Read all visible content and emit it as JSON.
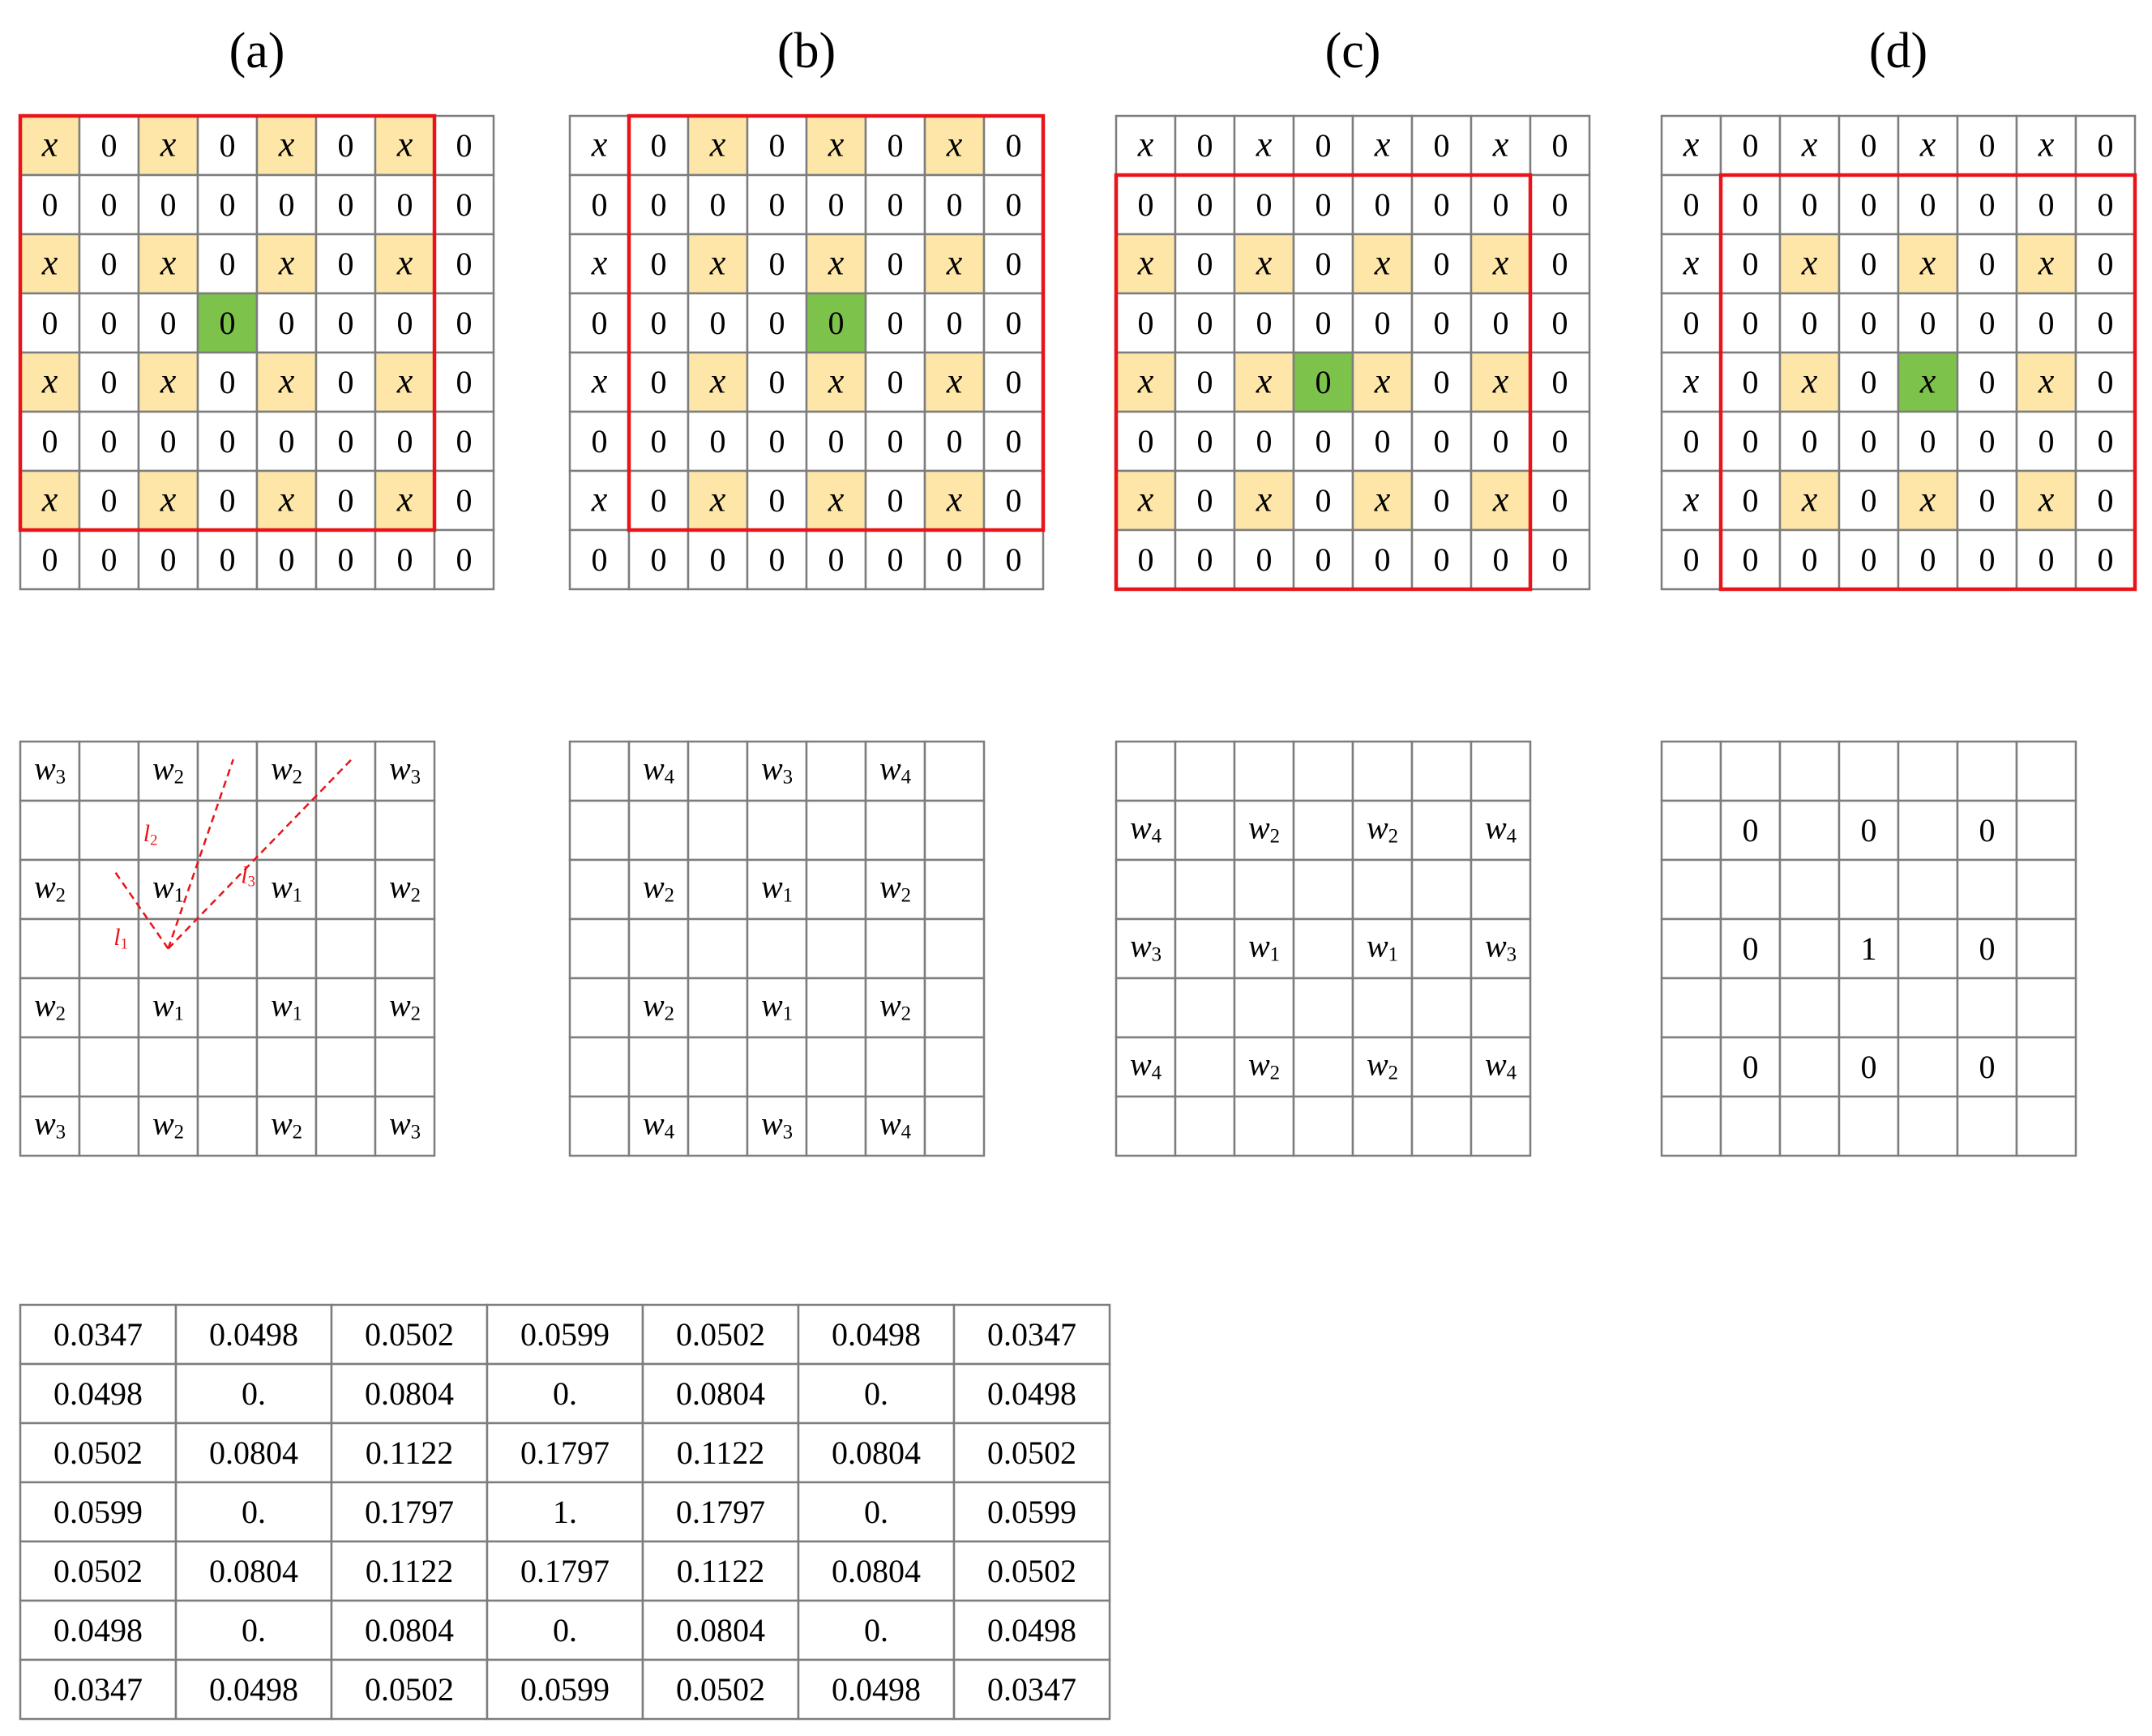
{
  "panels": [
    {
      "label": "(a)",
      "rows": [
        [
          "x",
          "0",
          "x",
          "0",
          "x",
          "0",
          "x",
          "0"
        ],
        [
          "0",
          "0",
          "0",
          "0",
          "0",
          "0",
          "0",
          "0"
        ],
        [
          "x",
          "0",
          "x",
          "0",
          "x",
          "0",
          "x",
          "0"
        ],
        [
          "0",
          "0",
          "0",
          "0",
          "0",
          "0",
          "0",
          "0"
        ],
        [
          "x",
          "0",
          "x",
          "0",
          "x",
          "0",
          "x",
          "0"
        ],
        [
          "0",
          "0",
          "0",
          "0",
          "0",
          "0",
          "0",
          "0"
        ],
        [
          "x",
          "0",
          "x",
          "0",
          "x",
          "0",
          "x",
          "0"
        ],
        [
          "0",
          "0",
          "0",
          "0",
          "0",
          "0",
          "0",
          "0"
        ]
      ],
      "highlight_cells": [
        [
          0,
          0
        ],
        [
          0,
          2
        ],
        [
          0,
          4
        ],
        [
          0,
          6
        ],
        [
          2,
          0
        ],
        [
          2,
          2
        ],
        [
          2,
          4
        ],
        [
          2,
          6
        ],
        [
          4,
          0
        ],
        [
          4,
          2
        ],
        [
          4,
          4
        ],
        [
          4,
          6
        ],
        [
          6,
          0
        ],
        [
          6,
          2
        ],
        [
          6,
          4
        ],
        [
          6,
          6
        ]
      ],
      "center_cell": [
        3,
        3
      ],
      "window": {
        "row": 0,
        "col": 0,
        "size": 7
      },
      "weights_grid": [
        [
          "w3",
          "",
          "w2",
          "",
          "w2",
          "",
          "w3"
        ],
        [
          "",
          "",
          "",
          "",
          "",
          "",
          ""
        ],
        [
          "w2",
          "",
          "w1",
          "",
          "w1",
          "",
          "w2"
        ],
        [
          "",
          "",
          "",
          "",
          "",
          "",
          ""
        ],
        [
          "w2",
          "",
          "w1",
          "",
          "w1",
          "",
          "w2"
        ],
        [
          "",
          "",
          "",
          "",
          "",
          "",
          ""
        ],
        [
          "w3",
          "",
          "w2",
          "",
          "w2",
          "",
          "w3"
        ]
      ],
      "distance_labels": [
        "l1",
        "l2",
        "l3"
      ]
    },
    {
      "label": "(b)",
      "rows": [
        [
          "x",
          "0",
          "x",
          "0",
          "x",
          "0",
          "x",
          "0"
        ],
        [
          "0",
          "0",
          "0",
          "0",
          "0",
          "0",
          "0",
          "0"
        ],
        [
          "x",
          "0",
          "x",
          "0",
          "x",
          "0",
          "x",
          "0"
        ],
        [
          "0",
          "0",
          "0",
          "0",
          "0",
          "0",
          "0",
          "0"
        ],
        [
          "x",
          "0",
          "x",
          "0",
          "x",
          "0",
          "x",
          "0"
        ],
        [
          "0",
          "0",
          "0",
          "0",
          "0",
          "0",
          "0",
          "0"
        ],
        [
          "x",
          "0",
          "x",
          "0",
          "x",
          "0",
          "x",
          "0"
        ],
        [
          "0",
          "0",
          "0",
          "0",
          "0",
          "0",
          "0",
          "0"
        ]
      ],
      "highlight_cells": [
        [
          0,
          2
        ],
        [
          0,
          4
        ],
        [
          0,
          6
        ],
        [
          2,
          2
        ],
        [
          2,
          4
        ],
        [
          2,
          6
        ],
        [
          4,
          2
        ],
        [
          4,
          4
        ],
        [
          4,
          6
        ],
        [
          6,
          2
        ],
        [
          6,
          4
        ],
        [
          6,
          6
        ]
      ],
      "center_cell": [
        3,
        4
      ],
      "window": {
        "row": 0,
        "col": 1,
        "size": 7
      },
      "weights_grid": [
        [
          "",
          "w4",
          "",
          "w3",
          "",
          "w4",
          ""
        ],
        [
          "",
          "",
          "",
          "",
          "",
          "",
          ""
        ],
        [
          "",
          "w2",
          "",
          "w1",
          "",
          "w2",
          ""
        ],
        [
          "",
          "",
          "",
          "",
          "",
          "",
          ""
        ],
        [
          "",
          "w2",
          "",
          "w1",
          "",
          "w2",
          ""
        ],
        [
          "",
          "",
          "",
          "",
          "",
          "",
          ""
        ],
        [
          "",
          "w4",
          "",
          "w3",
          "",
          "w4",
          ""
        ]
      ]
    },
    {
      "label": "(c)",
      "rows": [
        [
          "x",
          "0",
          "x",
          "0",
          "x",
          "0",
          "x",
          "0"
        ],
        [
          "0",
          "0",
          "0",
          "0",
          "0",
          "0",
          "0",
          "0"
        ],
        [
          "x",
          "0",
          "x",
          "0",
          "x",
          "0",
          "x",
          "0"
        ],
        [
          "0",
          "0",
          "0",
          "0",
          "0",
          "0",
          "0",
          "0"
        ],
        [
          "x",
          "0",
          "x",
          "0",
          "x",
          "0",
          "x",
          "0"
        ],
        [
          "0",
          "0",
          "0",
          "0",
          "0",
          "0",
          "0",
          "0"
        ],
        [
          "x",
          "0",
          "x",
          "0",
          "x",
          "0",
          "x",
          "0"
        ],
        [
          "0",
          "0",
          "0",
          "0",
          "0",
          "0",
          "0",
          "0"
        ]
      ],
      "highlight_cells": [
        [
          2,
          0
        ],
        [
          2,
          2
        ],
        [
          2,
          4
        ],
        [
          2,
          6
        ],
        [
          4,
          0
        ],
        [
          4,
          2
        ],
        [
          4,
          4
        ],
        [
          4,
          6
        ],
        [
          6,
          0
        ],
        [
          6,
          2
        ],
        [
          6,
          4
        ],
        [
          6,
          6
        ]
      ],
      "center_cell": [
        4,
        3
      ],
      "window": {
        "row": 1,
        "col": 0,
        "size": 7
      },
      "weights_grid": [
        [
          "",
          "",
          "",
          "",
          "",
          "",
          ""
        ],
        [
          "w4",
          "",
          "w2",
          "",
          "w2",
          "",
          "w4"
        ],
        [
          "",
          "",
          "",
          "",
          "",
          "",
          ""
        ],
        [
          "w3",
          "",
          "w1",
          "",
          "w1",
          "",
          "w3"
        ],
        [
          "",
          "",
          "",
          "",
          "",
          "",
          ""
        ],
        [
          "w4",
          "",
          "w2",
          "",
          "w2",
          "",
          "w4"
        ],
        [
          "",
          "",
          "",
          "",
          "",
          "",
          ""
        ]
      ]
    },
    {
      "label": "(d)",
      "rows": [
        [
          "x",
          "0",
          "x",
          "0",
          "x",
          "0",
          "x",
          "0"
        ],
        [
          "0",
          "0",
          "0",
          "0",
          "0",
          "0",
          "0",
          "0"
        ],
        [
          "x",
          "0",
          "x",
          "0",
          "x",
          "0",
          "x",
          "0"
        ],
        [
          "0",
          "0",
          "0",
          "0",
          "0",
          "0",
          "0",
          "0"
        ],
        [
          "x",
          "0",
          "x",
          "0",
          "x",
          "0",
          "x",
          "0"
        ],
        [
          "0",
          "0",
          "0",
          "0",
          "0",
          "0",
          "0",
          "0"
        ],
        [
          "x",
          "0",
          "x",
          "0",
          "x",
          "0",
          "x",
          "0"
        ],
        [
          "0",
          "0",
          "0",
          "0",
          "0",
          "0",
          "0",
          "0"
        ]
      ],
      "highlight_cells": [
        [
          2,
          2
        ],
        [
          2,
          4
        ],
        [
          2,
          6
        ],
        [
          4,
          2
        ],
        [
          4,
          4
        ],
        [
          4,
          6
        ],
        [
          6,
          2
        ],
        [
          6,
          4
        ],
        [
          6,
          6
        ]
      ],
      "center_cell": [
        4,
        4
      ],
      "window": {
        "row": 1,
        "col": 1,
        "size": 7
      },
      "weights_grid": [
        [
          "",
          "",
          "",
          "",
          "",
          "",
          ""
        ],
        [
          "",
          "0",
          "",
          "0",
          "",
          "0",
          ""
        ],
        [
          "",
          "",
          "",
          "",
          "",
          "",
          ""
        ],
        [
          "",
          "0",
          "",
          "1",
          "",
          "0",
          ""
        ],
        [
          "",
          "",
          "",
          "",
          "",
          "",
          ""
        ],
        [
          "",
          "0",
          "",
          "0",
          "",
          "0",
          ""
        ],
        [
          "",
          "",
          "",
          "",
          "",
          "",
          ""
        ]
      ]
    }
  ],
  "kernel_table": [
    [
      "0.0347",
      "0.0498",
      "0.0502",
      "0.0599",
      "0.0502",
      "0.0498",
      "0.0347"
    ],
    [
      "0.0498",
      "0.",
      "0.0804",
      "0.",
      "0.0804",
      "0.",
      "0.0498"
    ],
    [
      "0.0502",
      "0.0804",
      "0.1122",
      "0.1797",
      "0.1122",
      "0.0804",
      "0.0502"
    ],
    [
      "0.0599",
      "0.",
      "0.1797",
      "1.",
      "0.1797",
      "0.",
      "0.0599"
    ],
    [
      "0.0502",
      "0.0804",
      "0.1122",
      "0.1797",
      "0.1122",
      "0.0804",
      "0.0502"
    ],
    [
      "0.0498",
      "0.",
      "0.0804",
      "0.",
      "0.0804",
      "0.",
      "0.0498"
    ],
    [
      "0.0347",
      "0.0498",
      "0.0502",
      "0.0599",
      "0.0502",
      "0.0498",
      "0.0347"
    ]
  ],
  "colors": {
    "highlight": "#fde6a8",
    "center": "#7dc24a",
    "window": "#e8141a",
    "grid_line": "#7d7d7d",
    "distance_line": "#e8141a"
  }
}
